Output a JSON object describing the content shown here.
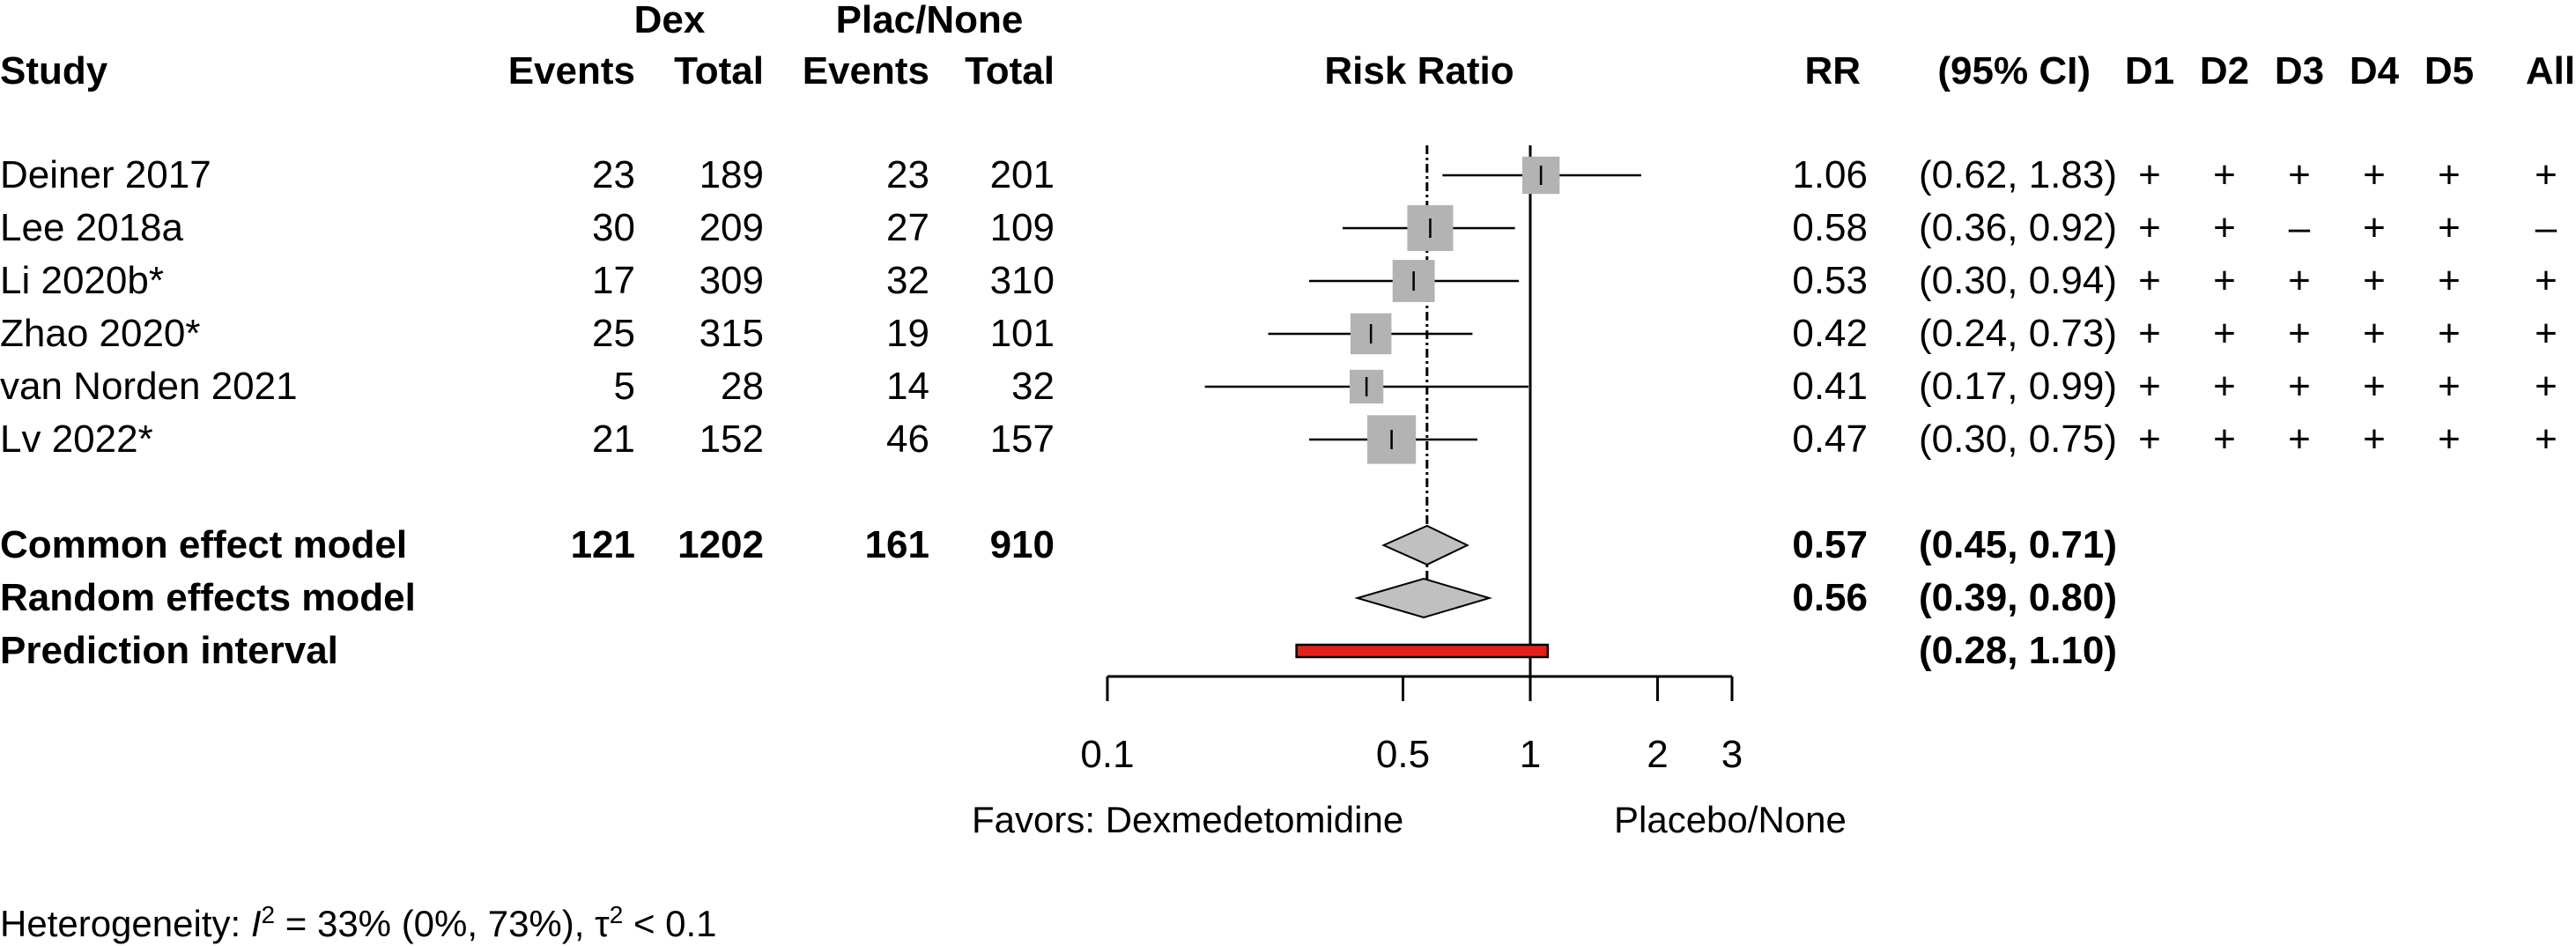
{
  "headers": {
    "dex_group": "Dex",
    "plac_group": "Plac/None",
    "study": "Study",
    "events": "Events",
    "total": "Total",
    "risk_ratio": "Risk Ratio",
    "rr": "RR",
    "ci": "(95% CI)",
    "domains": [
      "D1",
      "D2",
      "D3",
      "D4",
      "D5",
      "All"
    ]
  },
  "studies": [
    {
      "name": "Deiner 2017",
      "dex_events": "23",
      "dex_total": "189",
      "plac_events": "23",
      "plac_total": "201",
      "rr_text": "1.06",
      "ci_text": "(0.62, 1.83)",
      "rob": [
        "+",
        "+",
        "+",
        "+",
        "+",
        "+"
      ]
    },
    {
      "name": "Lee 2018a",
      "dex_events": "30",
      "dex_total": "209",
      "plac_events": "27",
      "plac_total": "109",
      "rr_text": "0.58",
      "ci_text": "(0.36, 0.92)",
      "rob": [
        "+",
        "+",
        "–",
        "+",
        "+",
        "–"
      ]
    },
    {
      "name": "Li 2020b*",
      "dex_events": "17",
      "dex_total": "309",
      "plac_events": "32",
      "plac_total": "310",
      "rr_text": "0.53",
      "ci_text": "(0.30, 0.94)",
      "rob": [
        "+",
        "+",
        "+",
        "+",
        "+",
        "+"
      ]
    },
    {
      "name": "Zhao 2020*",
      "dex_events": "25",
      "dex_total": "315",
      "plac_events": "19",
      "plac_total": "101",
      "rr_text": "0.42",
      "ci_text": "(0.24, 0.73)",
      "rob": [
        "+",
        "+",
        "+",
        "+",
        "+",
        "+"
      ]
    },
    {
      "name": "van Norden 2021",
      "dex_events": "5",
      "dex_total": "28",
      "plac_events": "14",
      "plac_total": "32",
      "rr_text": "0.41",
      "ci_text": "(0.17, 0.99)",
      "rob": [
        "+",
        "+",
        "+",
        "+",
        "+",
        "+"
      ]
    },
    {
      "name": "Lv 2022*",
      "dex_events": "21",
      "dex_total": "152",
      "plac_events": "46",
      "plac_total": "157",
      "rr_text": "0.47",
      "ci_text": "(0.30, 0.75)",
      "rob": [
        "+",
        "+",
        "+",
        "+",
        "+",
        "+"
      ]
    }
  ],
  "summary": [
    {
      "name": "Common effect model",
      "dex_events": "121",
      "dex_total": "1202",
      "plac_events": "161",
      "plac_total": "910",
      "rr_text": "0.57",
      "ci_text": "(0.45, 0.71)"
    },
    {
      "name": "Random effects model",
      "dex_events": "",
      "dex_total": "",
      "plac_events": "",
      "plac_total": "",
      "rr_text": "0.56",
      "ci_text": "(0.39, 0.80)"
    },
    {
      "name": "Prediction interval",
      "dex_events": "",
      "dex_total": "",
      "plac_events": "",
      "plac_total": "",
      "rr_text": "",
      "ci_text": "(0.28, 1.10)"
    }
  ],
  "axis": {
    "favors_left": "Favors: Dexmedetomidine",
    "favors_right": "Placebo/None"
  },
  "heterogeneity": {
    "prefix": "Heterogeneity: ",
    "i2_symbol": "I",
    "i2_sup": "2",
    "i2_text": " = 33% (0%, 73%), ",
    "tau_symbol": "τ",
    "tau_sup": "2",
    "tau_text": " < 0.1"
  },
  "colors": {
    "study_box": "#b3b3b3",
    "diamond": "#c0c0c0",
    "prediction_bar": "#e32119",
    "line": "#000000"
  },
  "chart_data": {
    "type": "forest",
    "xlabel": "Risk Ratio",
    "x_scale": "log",
    "xlim": [
      0.1,
      3
    ],
    "x_ticks": [
      0.1,
      0.5,
      1,
      2,
      3
    ],
    "x_tick_labels": [
      "0.1",
      "0.5",
      "1",
      "2",
      "3"
    ],
    "reference_line": 1,
    "pooled_reference_line": 0.57,
    "studies": [
      {
        "name": "Deiner 2017",
        "rr": 1.06,
        "lower": 0.62,
        "upper": 1.83,
        "weight": 0.45
      },
      {
        "name": "Lee 2018a",
        "rr": 0.58,
        "lower": 0.36,
        "upper": 0.92,
        "weight": 0.75
      },
      {
        "name": "Li 2020b*",
        "rr": 0.53,
        "lower": 0.3,
        "upper": 0.94,
        "weight": 0.62
      },
      {
        "name": "Zhao 2020*",
        "rr": 0.42,
        "lower": 0.24,
        "upper": 0.73,
        "weight": 0.58
      },
      {
        "name": "van Norden 2021",
        "rr": 0.41,
        "lower": 0.17,
        "upper": 0.99,
        "weight": 0.32
      },
      {
        "name": "Lv 2022*",
        "rr": 0.47,
        "lower": 0.3,
        "upper": 0.75,
        "weight": 0.85
      }
    ],
    "common_effect": {
      "rr": 0.57,
      "lower": 0.45,
      "upper": 0.71
    },
    "random_effects": {
      "rr": 0.56,
      "lower": 0.39,
      "upper": 0.8
    },
    "prediction_interval": {
      "lower": 0.28,
      "upper": 1.1
    }
  }
}
